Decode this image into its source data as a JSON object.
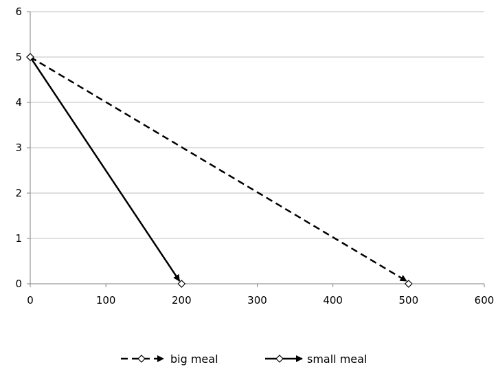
{
  "chart_data": {
    "type": "line",
    "title": "",
    "xlabel": "",
    "ylabel": "",
    "xlim": [
      0,
      600
    ],
    "ylim": [
      0,
      6
    ],
    "xticks": [
      0,
      100,
      200,
      300,
      400,
      500,
      600
    ],
    "yticks": [
      0,
      1,
      2,
      3,
      4,
      5,
      6
    ],
    "grid": "horizontal",
    "legend_position": "bottom",
    "series": [
      {
        "name": "big meal",
        "style": "dashed",
        "marker": "diamond-open",
        "color": "#000000",
        "arrow": true,
        "points": [
          [
            0,
            5
          ],
          [
            500,
            0
          ]
        ]
      },
      {
        "name": "small meal",
        "style": "solid",
        "marker": "diamond-open",
        "color": "#000000",
        "arrow": true,
        "points": [
          [
            0,
            5
          ],
          [
            200,
            0
          ]
        ]
      }
    ]
  }
}
